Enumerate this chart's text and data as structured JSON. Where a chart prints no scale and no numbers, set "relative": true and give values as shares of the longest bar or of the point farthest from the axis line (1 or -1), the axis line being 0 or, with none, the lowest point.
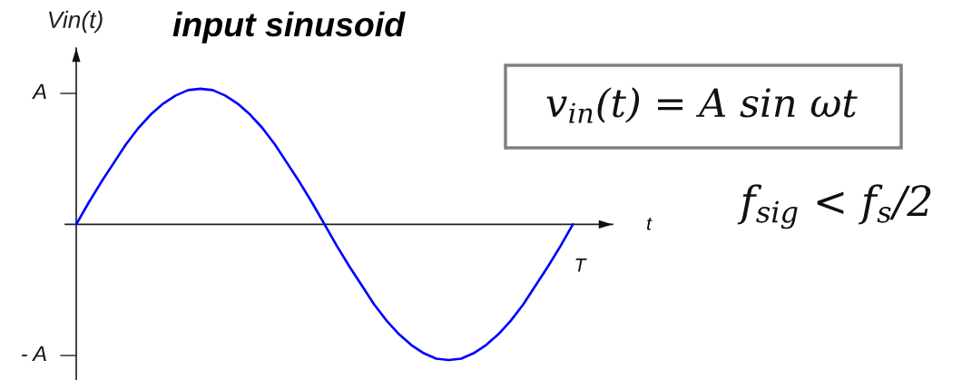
{
  "chart_data": {
    "type": "line",
    "relative": true,
    "title": "input sinusoid",
    "xlabel": "t",
    "ylabel": "Vin(t)",
    "annotations": [
      "A",
      "- A",
      "T",
      "v$_{in}$(t) = A sin ωt",
      "f$_{sig}$ < f$_{s}$/2"
    ],
    "categories": [
      null,
      null,
      null,
      null,
      null,
      null,
      null,
      null,
      null,
      null,
      null,
      null,
      null,
      null,
      null,
      null,
      null,
      null,
      null,
      null,
      null,
      null,
      null,
      null,
      null,
      null,
      null,
      null,
      null,
      null,
      null,
      null,
      null,
      null,
      null,
      null,
      null,
      null,
      null,
      null,
      null
    ],
    "series": [
      {
        "color": "#0000ff",
        "values": [
          0,
          0.16,
          0.31,
          0.45,
          0.59,
          0.71,
          0.81,
          0.89,
          0.95,
          0.99,
          1,
          0.99,
          0.95,
          0.89,
          0.81,
          0.71,
          0.59,
          0.45,
          0.31,
          0.16,
          0,
          -0.16,
          -0.31,
          -0.45,
          -0.59,
          -0.71,
          -0.81,
          -0.89,
          -0.95,
          -0.99,
          -1,
          -0.99,
          -0.95,
          -0.89,
          -0.81,
          -0.71,
          -0.59,
          -0.45,
          -0.31,
          -0.16,
          0
        ]
      }
    ],
    "marker": "none",
    "line_style": "solid"
  }
}
